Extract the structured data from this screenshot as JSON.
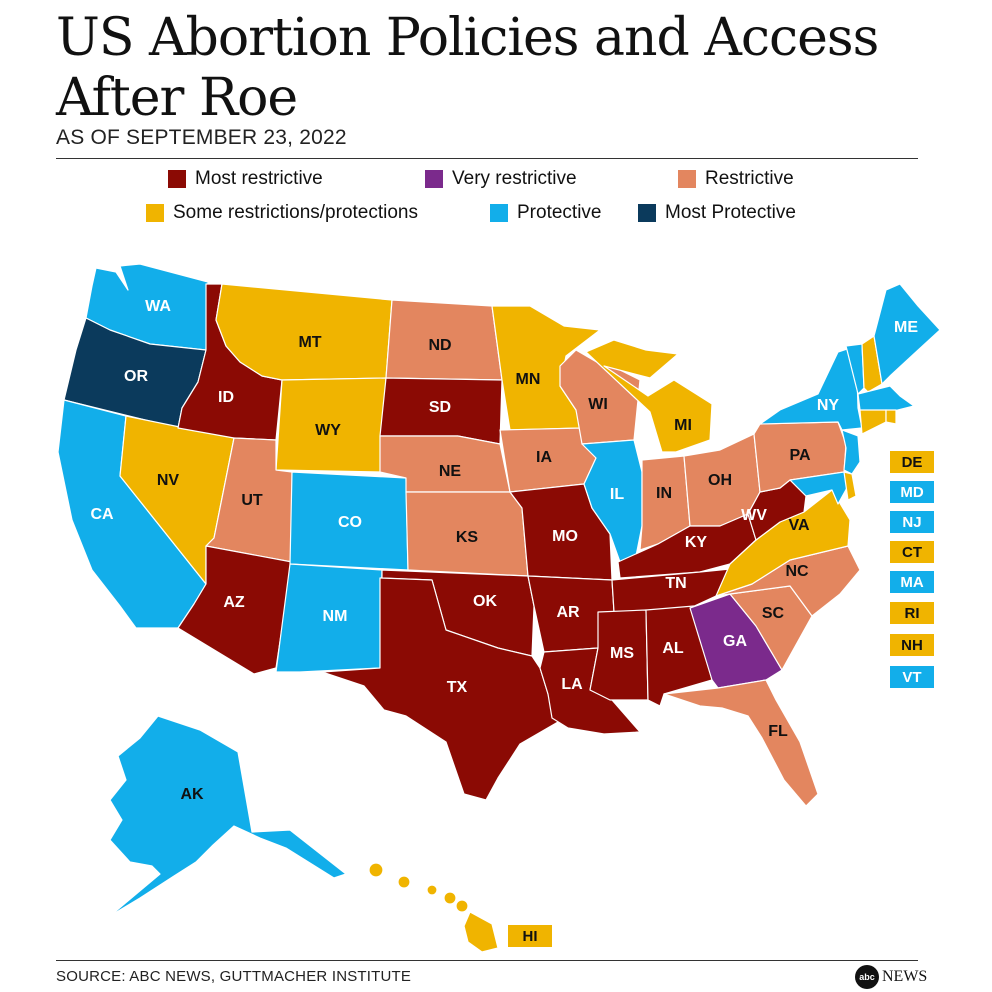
{
  "title": "US Abortion Policies and Access After Roe",
  "subtitle": "AS OF SEPTEMBER 23, 2022",
  "colors": {
    "most_restrictive": "#8b0a04",
    "very_restrictive": "#7b2a8c",
    "restrictive": "#e3865f",
    "some": "#f0b400",
    "protective": "#12aeea",
    "most_protective": "#0b3a5c"
  },
  "legend": [
    {
      "key": "most_restrictive",
      "label": "Most restrictive"
    },
    {
      "key": "very_restrictive",
      "label": "Very restrictive"
    },
    {
      "key": "restrictive",
      "label": "Restrictive"
    },
    {
      "key": "some",
      "label": "Some restrictions/protections"
    },
    {
      "key": "protective",
      "label": "Protective"
    },
    {
      "key": "most_protective",
      "label": "Most Protective"
    }
  ],
  "states": {
    "WA": "protective",
    "OR": "most_protective",
    "CA": "protective",
    "NV": "some",
    "ID": "most_restrictive",
    "MT": "some",
    "WY": "some",
    "UT": "restrictive",
    "AZ": "most_restrictive",
    "CO": "protective",
    "NM": "protective",
    "ND": "restrictive",
    "SD": "most_restrictive",
    "NE": "restrictive",
    "KS": "restrictive",
    "OK": "most_restrictive",
    "TX": "most_restrictive",
    "MN": "some",
    "IA": "restrictive",
    "MO": "most_restrictive",
    "AR": "most_restrictive",
    "LA": "most_restrictive",
    "WI": "restrictive",
    "IL": "protective",
    "MI": "some",
    "IN": "restrictive",
    "OH": "restrictive",
    "KY": "most_restrictive",
    "TN": "most_restrictive",
    "MS": "most_restrictive",
    "AL": "most_restrictive",
    "GA": "very_restrictive",
    "FL": "restrictive",
    "SC": "restrictive",
    "NC": "restrictive",
    "VA": "some",
    "WV": "most_restrictive",
    "PA": "restrictive",
    "NY": "protective",
    "ME": "protective",
    "NJ": "protective",
    "MD": "protective",
    "DE": "some",
    "CT": "some",
    "MA": "protective",
    "RI": "some",
    "NH": "some",
    "VT": "protective",
    "AK": "protective",
    "HI": "some"
  },
  "callouts": [
    {
      "code": "DE",
      "key": "some"
    },
    {
      "code": "MD",
      "key": "protective"
    },
    {
      "code": "NJ",
      "key": "protective"
    },
    {
      "code": "CT",
      "key": "some"
    },
    {
      "code": "MA",
      "key": "protective"
    },
    {
      "code": "RI",
      "key": "some"
    },
    {
      "code": "NH",
      "key": "some"
    },
    {
      "code": "VT",
      "key": "protective"
    }
  ],
  "hi_label": "HI",
  "footer": "SOURCE: ABC NEWS, GUTTMACHER INSTITUTE",
  "logo": {
    "mark": "abc",
    "text": "NEWS"
  }
}
